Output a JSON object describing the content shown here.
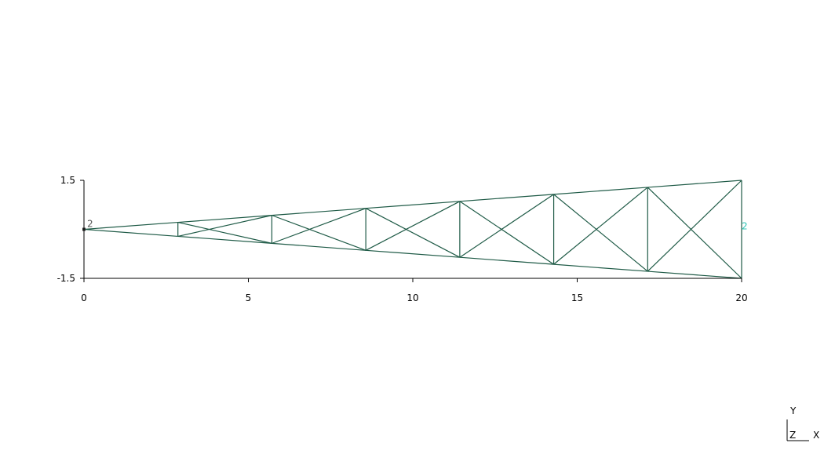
{
  "chart_data": {
    "type": "truss",
    "x_ticks": [
      "0",
      "5",
      "10",
      "15",
      "20"
    ],
    "x_tick_values": [
      0,
      5,
      10,
      15,
      20
    ],
    "y_ticks": [
      "1.5",
      "-1.5"
    ],
    "y_tick_values": [
      1.5,
      -1.5
    ],
    "xlim": [
      0,
      20
    ],
    "ylim": [
      -1.5,
      1.5
    ],
    "grid": false,
    "member_color": "#1e5a46",
    "nodes": [
      {
        "x": 0,
        "y": 0
      },
      {
        "x": 2.857,
        "y": 0.214
      },
      {
        "x": 2.857,
        "y": -0.214
      },
      {
        "x": 5.714,
        "y": 0.429
      },
      {
        "x": 5.714,
        "y": -0.429
      },
      {
        "x": 8.571,
        "y": 0.643
      },
      {
        "x": 8.571,
        "y": -0.643
      },
      {
        "x": 11.429,
        "y": 0.857
      },
      {
        "x": 11.429,
        "y": -0.857
      },
      {
        "x": 14.286,
        "y": 1.071
      },
      {
        "x": 14.286,
        "y": -1.071
      },
      {
        "x": 17.143,
        "y": 1.286
      },
      {
        "x": 17.143,
        "y": -1.286
      },
      {
        "x": 20,
        "y": 1.5
      },
      {
        "x": 20,
        "y": -1.5
      }
    ],
    "members": [
      [
        0,
        1
      ],
      [
        1,
        3
      ],
      [
        3,
        5
      ],
      [
        5,
        7
      ],
      [
        7,
        9
      ],
      [
        9,
        11
      ],
      [
        11,
        13
      ],
      [
        0,
        2
      ],
      [
        2,
        4
      ],
      [
        4,
        6
      ],
      [
        6,
        8
      ],
      [
        8,
        10
      ],
      [
        10,
        12
      ],
      [
        12,
        14
      ],
      [
        1,
        2
      ],
      [
        3,
        4
      ],
      [
        5,
        6
      ],
      [
        7,
        8
      ],
      [
        9,
        10
      ],
      [
        11,
        12
      ],
      [
        13,
        14
      ],
      [
        1,
        4
      ],
      [
        2,
        3
      ],
      [
        3,
        6
      ],
      [
        4,
        5
      ],
      [
        5,
        8
      ],
      [
        6,
        7
      ],
      [
        7,
        10
      ],
      [
        8,
        9
      ],
      [
        9,
        12
      ],
      [
        10,
        11
      ],
      [
        11,
        14
      ],
      [
        12,
        13
      ]
    ],
    "point_labels": [
      {
        "text": "2",
        "x": 0,
        "y": 0,
        "color": "#555555"
      },
      {
        "text": "2",
        "x": 20,
        "y": 0,
        "color": "#2ec4b6"
      }
    ]
  },
  "triad": {
    "y_label": "Y",
    "z_label": "Z",
    "x_label": "X"
  }
}
